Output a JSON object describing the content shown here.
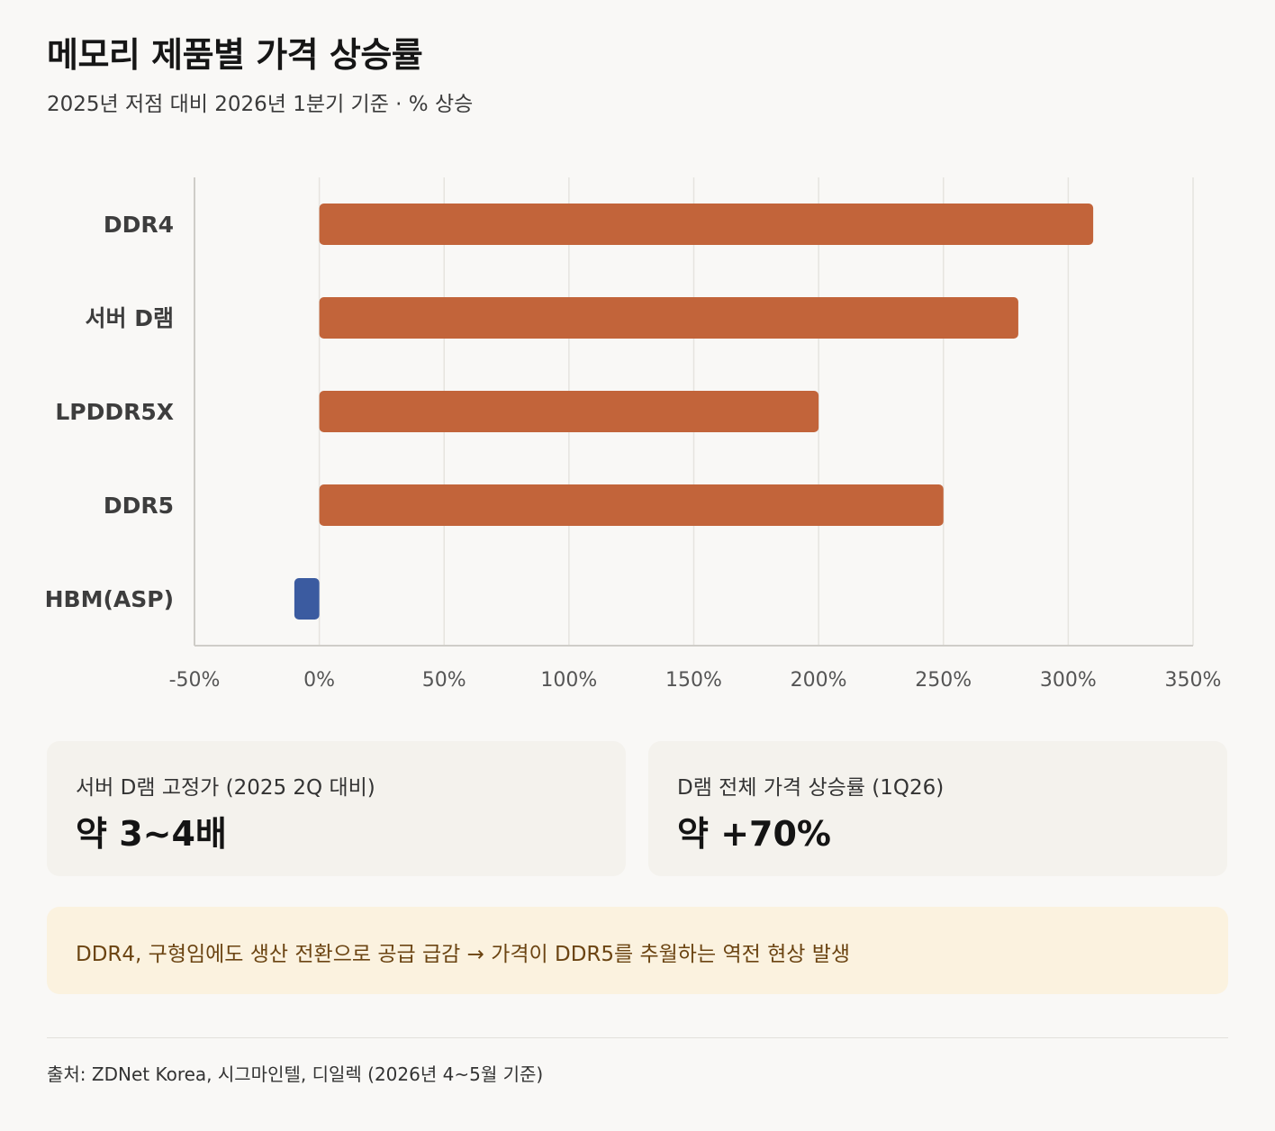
{
  "header": {
    "title": "메모리 제품별 가격 상승률",
    "subtitle": "2025년 저점 대비 2026년 1분기 기준 · % 상승"
  },
  "chart_data": {
    "type": "bar",
    "orientation": "horizontal",
    "categories": [
      "DDR4",
      "서버 D램",
      "LPDDR5X",
      "DDR5",
      "HBM(ASP)"
    ],
    "values": [
      310,
      280,
      200,
      250,
      -10
    ],
    "colors": [
      "#c2643a",
      "#c2643a",
      "#c2643a",
      "#c2643a",
      "#3b5ba0"
    ],
    "xlim": [
      -50,
      350
    ],
    "xticks": [
      -50,
      0,
      50,
      100,
      150,
      200,
      250,
      300,
      350
    ],
    "tick_suffix": "%",
    "grid": true
  },
  "cards": [
    {
      "label": "서버 D램 고정가 (2025 2Q 대비)",
      "value": "약 3~4배"
    },
    {
      "label": "D램 전체 가격 상승률 (1Q26)",
      "value": "약 +70%"
    }
  ],
  "note": "DDR4, 구형임에도 생산 전환으로 공급 급감 → 가격이 DDR5를 추월하는 역전 현상 발생",
  "source": "출처: ZDNet Korea, 시그마인텔, 디일렉 (2026년 4~5월 기준)"
}
